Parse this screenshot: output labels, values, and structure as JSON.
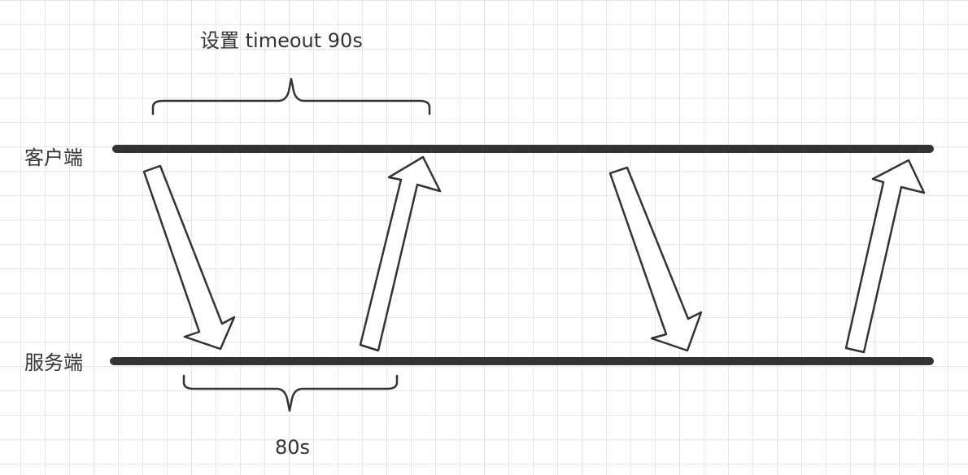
{
  "labels": {
    "timeout_label": "设置 timeout 90s",
    "client_label": "客户端",
    "server_label": "服务端",
    "server_time_label": "80s"
  },
  "colors": {
    "line": "#333333",
    "background": "#ffffff",
    "grid": "#e6e6e6"
  },
  "arrows": [
    {
      "name": "request-arrow-1",
      "direction": "down"
    },
    {
      "name": "response-arrow-1",
      "direction": "up"
    },
    {
      "name": "request-arrow-2",
      "direction": "down"
    },
    {
      "name": "response-arrow-2",
      "direction": "up"
    }
  ]
}
